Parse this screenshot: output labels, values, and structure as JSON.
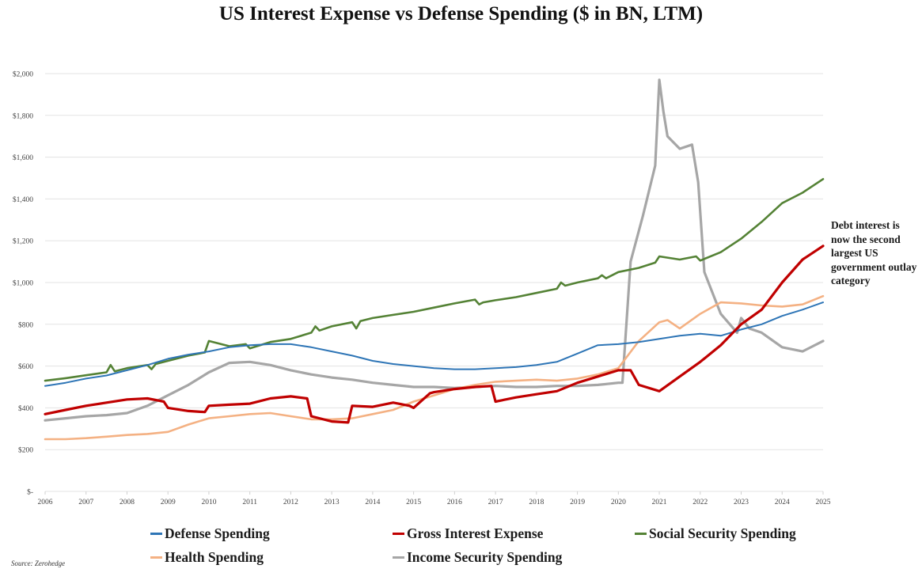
{
  "chart_data": {
    "type": "line",
    "title": "US Interest Expense vs Defense Spending ($ in BN, LTM)",
    "xlabel": "",
    "ylabel": "",
    "ylim": [
      0,
      2000
    ],
    "xlim": [
      2006,
      2025
    ],
    "grid": true,
    "legend_position": "bottom",
    "y_ticks": [
      "$-",
      "$200",
      "$400",
      "$600",
      "$800",
      "$1,000",
      "$1,200",
      "$1,400",
      "$1,600",
      "$1,800",
      "$2,000"
    ],
    "y_tick_values": [
      0,
      200,
      400,
      600,
      800,
      1000,
      1200,
      1400,
      1600,
      1800,
      2000
    ],
    "x_ticks": [
      "2006",
      "2007",
      "2008",
      "2009",
      "2010",
      "2011",
      "2012",
      "2013",
      "2014",
      "2015",
      "2016",
      "2017",
      "2018",
      "2019",
      "2020",
      "2021",
      "2022",
      "2023",
      "2024",
      "2025"
    ],
    "x_tick_values": [
      2006,
      2007,
      2008,
      2009,
      2010,
      2011,
      2012,
      2013,
      2014,
      2015,
      2016,
      2017,
      2018,
      2019,
      2020,
      2021,
      2022,
      2023,
      2024,
      2025
    ],
    "annotation": "Debt interest is now the second largest US government outlay category",
    "source": "Source: Zerohedge",
    "series": [
      {
        "name": "Social Security Spending",
        "color": "#548235",
        "x": [
          2006,
          2006.5,
          2007,
          2007.5,
          2007.6,
          2007.7,
          2008,
          2008.5,
          2008.6,
          2008.7,
          2009,
          2009.5,
          2009.9,
          2010,
          2010.5,
          2010.9,
          2011,
          2011.5,
          2012,
          2012.5,
          2012.6,
          2012.7,
          2013,
          2013.5,
          2013.6,
          2013.7,
          2014,
          2014.5,
          2015,
          2015.5,
          2016,
          2016.5,
          2016.6,
          2016.7,
          2017,
          2017.5,
          2018,
          2018.5,
          2018.6,
          2018.7,
          2019,
          2019.5,
          2019.6,
          2019.7,
          2020,
          2020.5,
          2020.9,
          2021,
          2021.5,
          2021.9,
          2022,
          2022.5,
          2023,
          2023.5,
          2024,
          2024.5,
          2025
        ],
        "values": [
          530,
          542,
          556,
          570,
          605,
          575,
          590,
          605,
          585,
          610,
          625,
          650,
          665,
          720,
          695,
          705,
          685,
          715,
          730,
          760,
          790,
          770,
          790,
          810,
          780,
          815,
          830,
          845,
          860,
          880,
          900,
          918,
          895,
          905,
          915,
          930,
          950,
          970,
          1000,
          985,
          1000,
          1020,
          1035,
          1020,
          1050,
          1070,
          1095,
          1125,
          1110,
          1125,
          1105,
          1145,
          1210,
          1290,
          1380,
          1430,
          1495
        ]
      },
      {
        "name": "Defense Spending",
        "color": "#2E75B6",
        "x": [
          2006,
          2006.5,
          2007,
          2007.5,
          2008,
          2008.5,
          2009,
          2009.5,
          2010,
          2010.5,
          2011,
          2011.5,
          2012,
          2012.5,
          2013,
          2013.5,
          2014,
          2014.5,
          2015,
          2015.5,
          2016,
          2016.5,
          2017,
          2017.5,
          2018,
          2018.5,
          2019,
          2019.5,
          2020,
          2020.5,
          2021,
          2021.5,
          2022,
          2022.5,
          2023,
          2023.5,
          2024,
          2024.5,
          2025
        ],
        "values": [
          505,
          520,
          540,
          555,
          580,
          605,
          635,
          655,
          670,
          690,
          700,
          705,
          705,
          690,
          670,
          650,
          625,
          610,
          600,
          590,
          585,
          585,
          590,
          595,
          605,
          620,
          660,
          700,
          705,
          715,
          730,
          745,
          755,
          745,
          775,
          800,
          840,
          870,
          905
        ]
      },
      {
        "name": "Gross Interest Expense",
        "color": "#C00000",
        "x": [
          2006,
          2006.5,
          2007,
          2007.5,
          2008,
          2008.5,
          2008.9,
          2009,
          2009.5,
          2009.9,
          2010,
          2010.5,
          2011,
          2011.5,
          2012,
          2012.4,
          2012.5,
          2013,
          2013.4,
          2013.5,
          2014,
          2014.5,
          2014.9,
          2015,
          2015.4,
          2015.5,
          2016,
          2016.5,
          2016.9,
          2017,
          2017.5,
          2018,
          2018.5,
          2019,
          2019.5,
          2020,
          2020.3,
          2020.5,
          2021,
          2021.5,
          2022,
          2022.5,
          2023,
          2023.5,
          2024,
          2024.5,
          2025
        ],
        "values": [
          370,
          390,
          410,
          425,
          440,
          445,
          430,
          400,
          385,
          380,
          410,
          415,
          420,
          445,
          455,
          445,
          360,
          335,
          330,
          410,
          405,
          425,
          410,
          400,
          470,
          475,
          490,
          500,
          505,
          430,
          450,
          465,
          480,
          520,
          550,
          580,
          580,
          510,
          480,
          550,
          620,
          700,
          800,
          870,
          1000,
          1110,
          1175
        ]
      },
      {
        "name": "Health Spending",
        "color": "#F4B183",
        "x": [
          2006,
          2006.5,
          2007,
          2007.5,
          2008,
          2008.5,
          2009,
          2009.5,
          2010,
          2010.5,
          2011,
          2011.5,
          2012,
          2012.5,
          2013,
          2013.5,
          2014,
          2014.5,
          2015,
          2015.5,
          2016,
          2016.5,
          2017,
          2017.5,
          2018,
          2018.5,
          2019,
          2019.5,
          2020,
          2020.5,
          2021,
          2021.2,
          2021.5,
          2022,
          2022.5,
          2023,
          2023.5,
          2024,
          2024.5,
          2025
        ],
        "values": [
          250,
          250,
          255,
          262,
          270,
          275,
          285,
          320,
          350,
          360,
          370,
          375,
          360,
          345,
          345,
          350,
          370,
          390,
          430,
          460,
          490,
          510,
          525,
          530,
          535,
          530,
          540,
          560,
          590,
          720,
          810,
          820,
          780,
          850,
          905,
          900,
          890,
          885,
          895,
          935
        ]
      },
      {
        "name": "Income Security Spending",
        "color": "#A6A6A6",
        "x": [
          2006,
          2006.5,
          2007,
          2007.5,
          2008,
          2008.5,
          2009,
          2009.5,
          2010,
          2010.5,
          2011,
          2011.5,
          2012,
          2012.5,
          2013,
          2013.5,
          2014,
          2014.5,
          2015,
          2015.5,
          2016,
          2016.5,
          2017,
          2017.5,
          2018,
          2018.5,
          2019,
          2019.5,
          2020,
          2020.1,
          2020.3,
          2020.6,
          2020.9,
          2021.0,
          2021.1,
          2021.2,
          2021.5,
          2021.8,
          2021.95,
          2022.1,
          2022.5,
          2022.9,
          2023.0,
          2023.2,
          2023.5,
          2024,
          2024.5,
          2025
        ],
        "values": [
          340,
          350,
          360,
          365,
          375,
          410,
          460,
          510,
          570,
          615,
          620,
          605,
          580,
          560,
          545,
          535,
          520,
          510,
          500,
          500,
          495,
          500,
          505,
          500,
          500,
          505,
          505,
          510,
          520,
          520,
          1100,
          1320,
          1560,
          1970,
          1820,
          1700,
          1640,
          1660,
          1480,
          1050,
          850,
          760,
          830,
          780,
          760,
          690,
          670,
          720
        ]
      }
    ]
  }
}
